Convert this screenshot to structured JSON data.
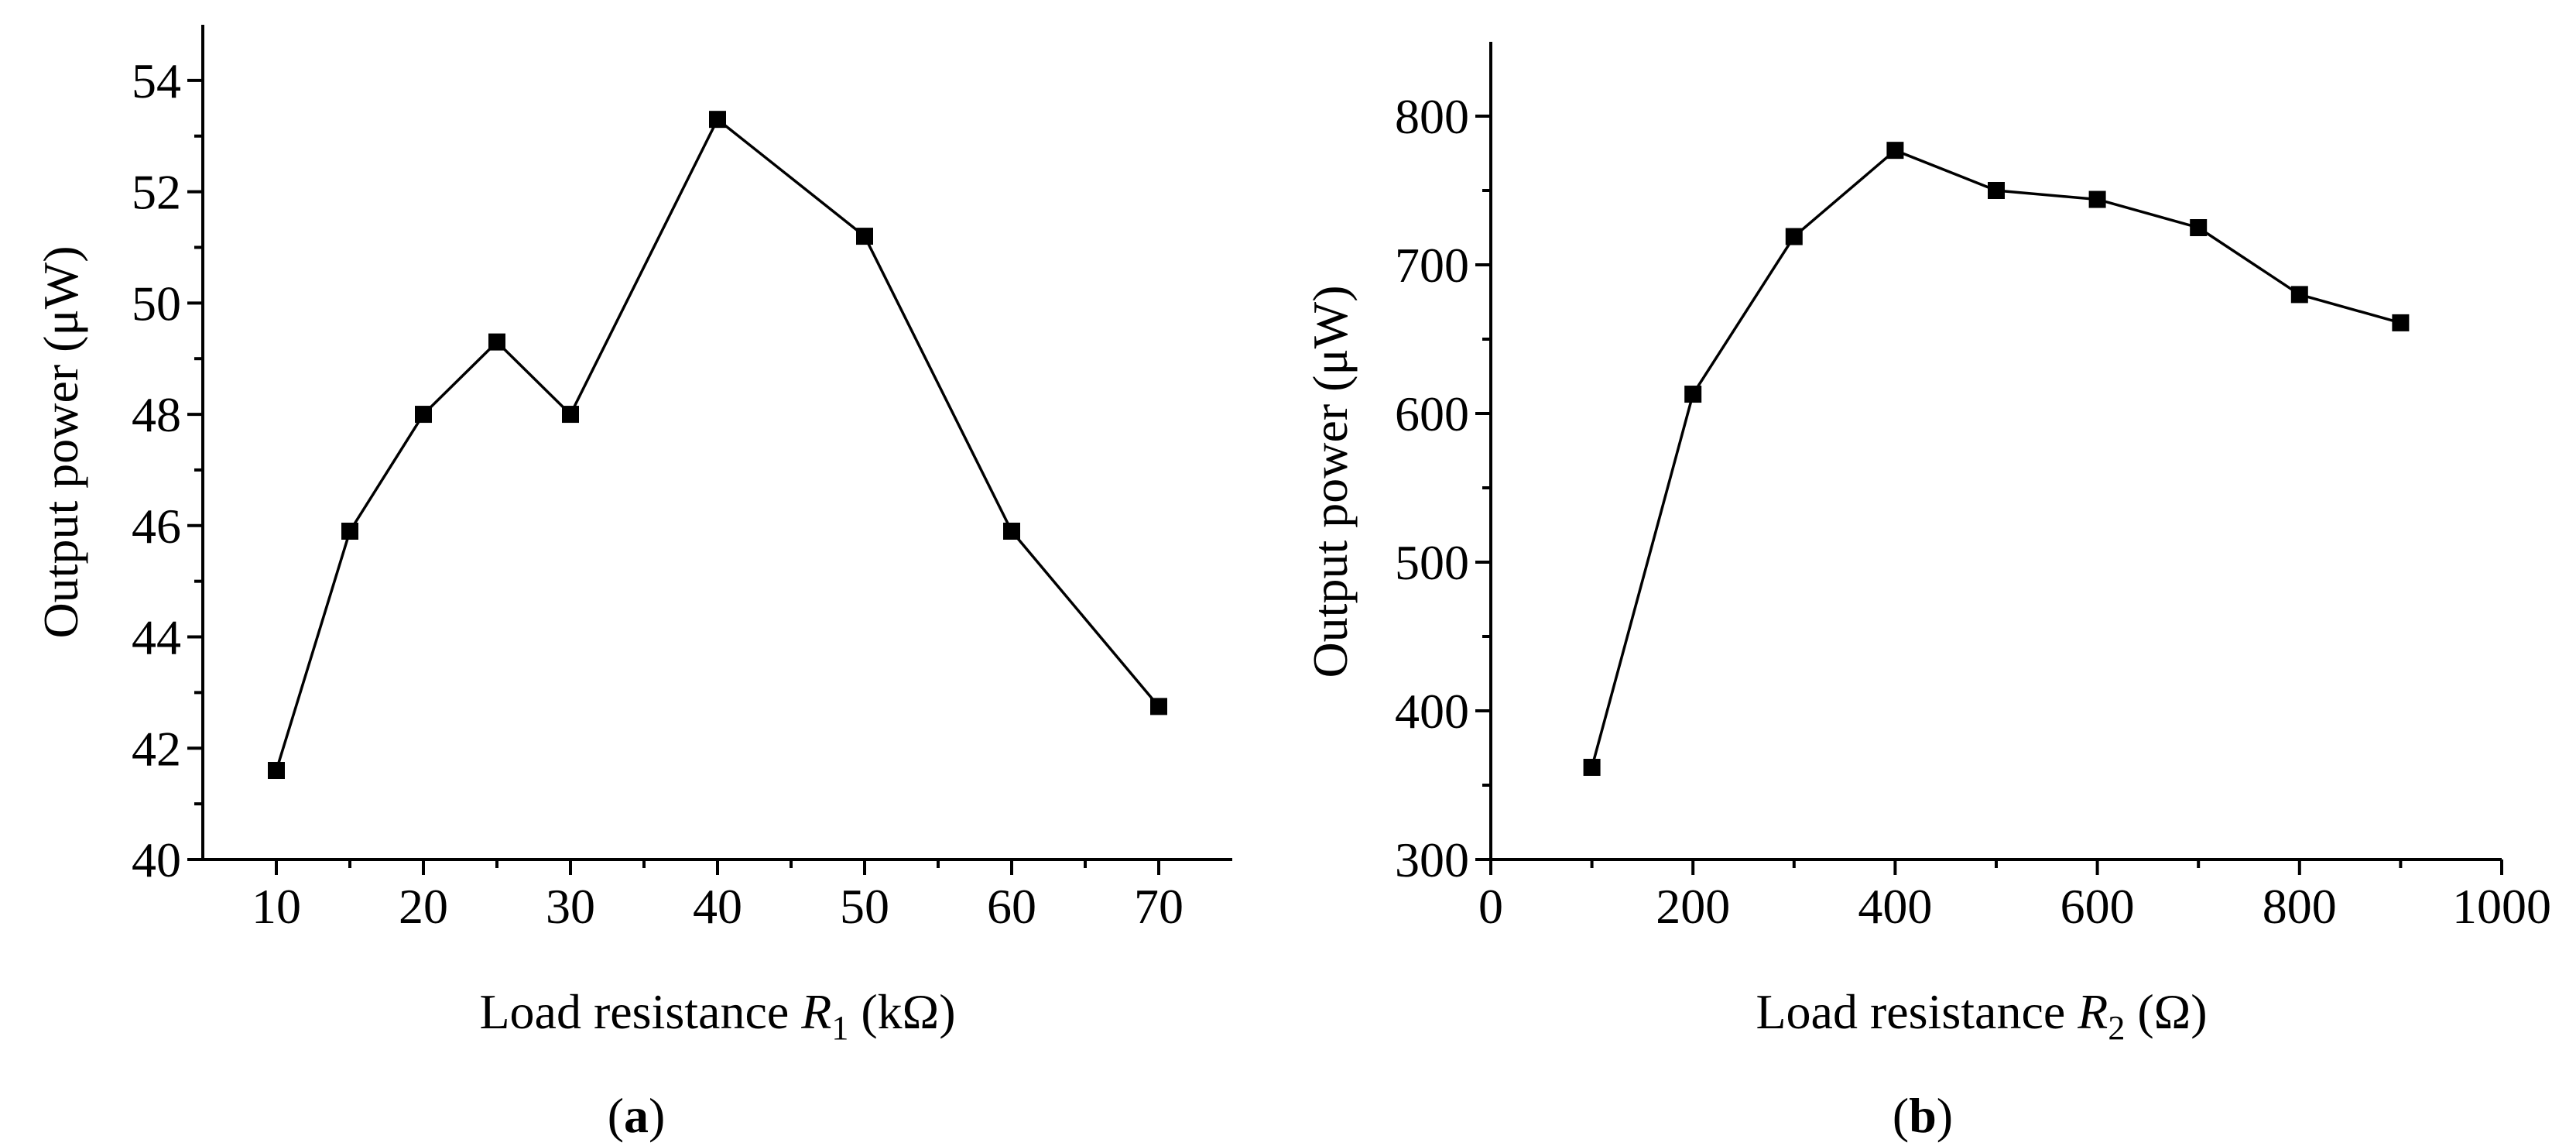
{
  "chart_data": [
    {
      "type": "line",
      "panel_label": "a",
      "xlabel": {
        "prefix": "Load resistance ",
        "var": "R",
        "sub": "1",
        "unit": " (kΩ)"
      },
      "ylabel": "Output power (μW)",
      "xlim": [
        5,
        75
      ],
      "ylim": [
        40,
        55
      ],
      "x_ticks": [
        10,
        20,
        30,
        40,
        50,
        60,
        70
      ],
      "x_tick_labels": [
        "10",
        "20",
        "30",
        "40",
        "50",
        "60",
        "70"
      ],
      "x_minor_ticks": [
        15,
        25,
        35,
        45,
        55,
        65
      ],
      "y_ticks": [
        40,
        42,
        44,
        46,
        48,
        50,
        52,
        54
      ],
      "y_tick_labels": [
        "40",
        "42",
        "44",
        "46",
        "48",
        "50",
        "52",
        "54"
      ],
      "y_minor_ticks": [
        41,
        43,
        45,
        47,
        49,
        51,
        53
      ],
      "series": [
        {
          "name": "Output power",
          "x": [
            10,
            15,
            20,
            25,
            30,
            40,
            50,
            60,
            70
          ],
          "values": [
            41.6,
            45.9,
            48.0,
            49.3,
            48.0,
            53.3,
            51.2,
            45.9,
            42.75
          ]
        }
      ]
    },
    {
      "type": "line",
      "panel_label": "b",
      "xlabel": {
        "prefix": "Load resistance ",
        "var": "R",
        "sub": "2",
        "unit": " (Ω)"
      },
      "ylabel": "Output power (μW)",
      "xlim": [
        0,
        1000
      ],
      "ylim": [
        300,
        850
      ],
      "x_ticks": [
        0,
        200,
        400,
        600,
        800,
        1000
      ],
      "x_tick_labels": [
        "0",
        "200",
        "400",
        "600",
        "800",
        "1000"
      ],
      "x_minor_ticks": [
        100,
        300,
        500,
        700,
        900
      ],
      "y_ticks": [
        300,
        400,
        500,
        600,
        700,
        800
      ],
      "y_tick_labels": [
        "300",
        "400",
        "500",
        "600",
        "700",
        "800"
      ],
      "y_minor_ticks": [
        350,
        450,
        550,
        650,
        750
      ],
      "series": [
        {
          "name": "Output power",
          "x": [
            100,
            200,
            300,
            400,
            500,
            600,
            700,
            800,
            900
          ],
          "values": [
            362,
            613,
            719,
            777,
            750,
            744,
            725,
            680,
            661
          ]
        }
      ]
    }
  ]
}
